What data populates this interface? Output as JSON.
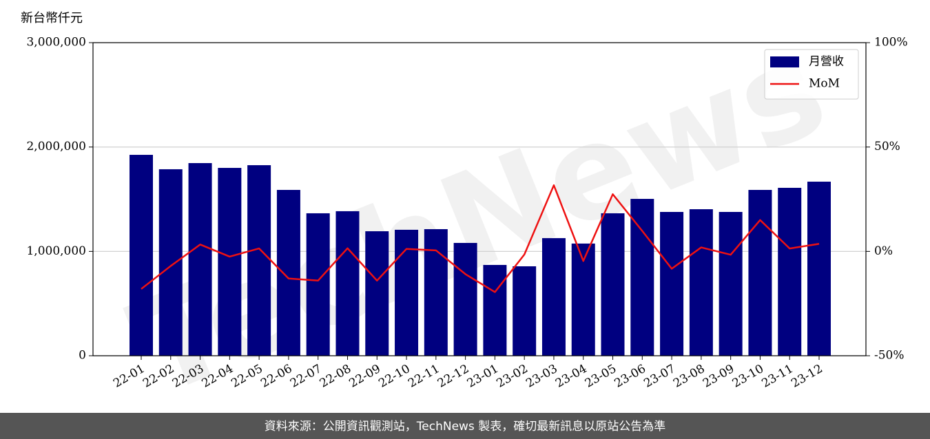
{
  "chart_data": {
    "type": "bar",
    "ylabel": "新台幣仟元",
    "watermark": "TechNews",
    "footer": "資料來源：公開資訊觀測站，TechNews 製表，確切最新訊息以原站公告為準",
    "categories": [
      "22-01",
      "22-02",
      "22-03",
      "22-04",
      "22-05",
      "22-06",
      "22-07",
      "22-08",
      "22-09",
      "22-10",
      "22-11",
      "22-12",
      "23-01",
      "23-02",
      "23-03",
      "23-04",
      "23-05",
      "23-06",
      "23-07",
      "23-08",
      "23-09",
      "23-10",
      "23-11",
      "23-12"
    ],
    "series": [
      {
        "name": "月營收",
        "type": "bar",
        "color": "#000080",
        "values": [
          1925000,
          1787000,
          1846000,
          1800000,
          1826000,
          1589000,
          1365000,
          1385000,
          1193000,
          1207000,
          1213000,
          1081000,
          870000,
          857000,
          1127000,
          1075000,
          1365000,
          1503000,
          1378000,
          1404000,
          1378000,
          1589000,
          1609000,
          1668000
        ]
      },
      {
        "name": "MoM",
        "type": "line",
        "color": "#ee1111",
        "axis": "y2",
        "values": [
          -18,
          -7,
          3.3,
          -2.5,
          1.4,
          -13,
          -14,
          1.5,
          -14,
          1.2,
          0.5,
          -10.9,
          -19.5,
          -1.5,
          31.7,
          -4.6,
          27.4,
          9.8,
          -8.3,
          1.9,
          -1.6,
          15,
          1.4,
          3.6
        ]
      }
    ],
    "ylim": [
      0,
      3000000
    ],
    "yticks": [
      0,
      {
        "value": 1000000,
        "label": "1,000,000"
      },
      {
        "value": 2000000,
        "label": "2,000,000"
      },
      {
        "value": 3000000,
        "label": "3,000,000"
      }
    ],
    "y2lim": [
      -50,
      100
    ],
    "y2ticks": [
      {
        "value": -50,
        "label": "-50%"
      },
      {
        "value": 0,
        "label": "0%"
      },
      {
        "value": 50,
        "label": "50%"
      },
      {
        "value": 100,
        "label": "100%"
      }
    ],
    "grid": true,
    "legend": "upper right"
  }
}
